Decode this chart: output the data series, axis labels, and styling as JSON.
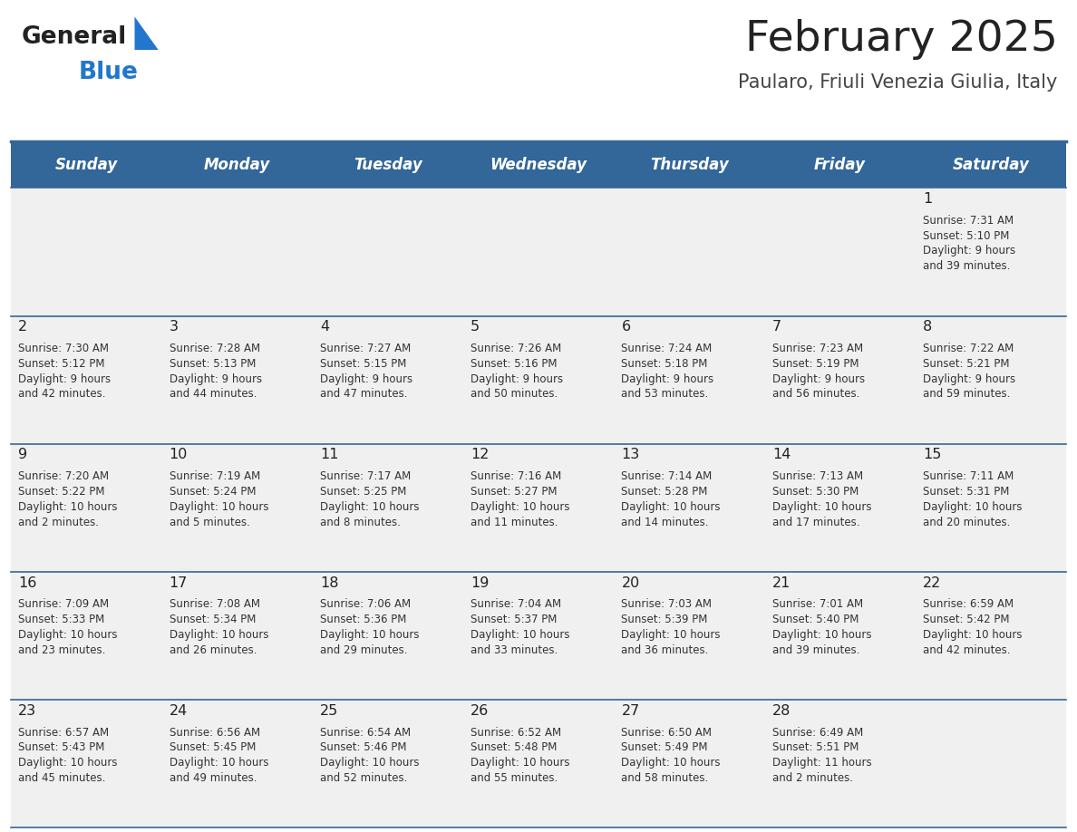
{
  "title": "February 2025",
  "subtitle": "Paularo, Friuli Venezia Giulia, Italy",
  "days_of_week": [
    "Sunday",
    "Monday",
    "Tuesday",
    "Wednesday",
    "Thursday",
    "Friday",
    "Saturday"
  ],
  "header_bg": "#336699",
  "header_text_color": "#ffffff",
  "cell_bg": "#f0f0f0",
  "cell_bg_white": "#ffffff",
  "separator_color": "#336699",
  "day_num_color": "#222222",
  "info_text_color": "#333333",
  "title_color": "#222222",
  "subtitle_color": "#444444",
  "logo_general_color": "#222222",
  "logo_blue_color": "#2277cc",
  "weeks": [
    [
      {
        "day": null,
        "sunrise": null,
        "sunset": null,
        "daylight": null
      },
      {
        "day": null,
        "sunrise": null,
        "sunset": null,
        "daylight": null
      },
      {
        "day": null,
        "sunrise": null,
        "sunset": null,
        "daylight": null
      },
      {
        "day": null,
        "sunrise": null,
        "sunset": null,
        "daylight": null
      },
      {
        "day": null,
        "sunrise": null,
        "sunset": null,
        "daylight": null
      },
      {
        "day": null,
        "sunrise": null,
        "sunset": null,
        "daylight": null
      },
      {
        "day": 1,
        "sunrise": "7:31 AM",
        "sunset": "5:10 PM",
        "daylight": "9 hours\nand 39 minutes."
      }
    ],
    [
      {
        "day": 2,
        "sunrise": "7:30 AM",
        "sunset": "5:12 PM",
        "daylight": "9 hours\nand 42 minutes."
      },
      {
        "day": 3,
        "sunrise": "7:28 AM",
        "sunset": "5:13 PM",
        "daylight": "9 hours\nand 44 minutes."
      },
      {
        "day": 4,
        "sunrise": "7:27 AM",
        "sunset": "5:15 PM",
        "daylight": "9 hours\nand 47 minutes."
      },
      {
        "day": 5,
        "sunrise": "7:26 AM",
        "sunset": "5:16 PM",
        "daylight": "9 hours\nand 50 minutes."
      },
      {
        "day": 6,
        "sunrise": "7:24 AM",
        "sunset": "5:18 PM",
        "daylight": "9 hours\nand 53 minutes."
      },
      {
        "day": 7,
        "sunrise": "7:23 AM",
        "sunset": "5:19 PM",
        "daylight": "9 hours\nand 56 minutes."
      },
      {
        "day": 8,
        "sunrise": "7:22 AM",
        "sunset": "5:21 PM",
        "daylight": "9 hours\nand 59 minutes."
      }
    ],
    [
      {
        "day": 9,
        "sunrise": "7:20 AM",
        "sunset": "5:22 PM",
        "daylight": "10 hours\nand 2 minutes."
      },
      {
        "day": 10,
        "sunrise": "7:19 AM",
        "sunset": "5:24 PM",
        "daylight": "10 hours\nand 5 minutes."
      },
      {
        "day": 11,
        "sunrise": "7:17 AM",
        "sunset": "5:25 PM",
        "daylight": "10 hours\nand 8 minutes."
      },
      {
        "day": 12,
        "sunrise": "7:16 AM",
        "sunset": "5:27 PM",
        "daylight": "10 hours\nand 11 minutes."
      },
      {
        "day": 13,
        "sunrise": "7:14 AM",
        "sunset": "5:28 PM",
        "daylight": "10 hours\nand 14 minutes."
      },
      {
        "day": 14,
        "sunrise": "7:13 AM",
        "sunset": "5:30 PM",
        "daylight": "10 hours\nand 17 minutes."
      },
      {
        "day": 15,
        "sunrise": "7:11 AM",
        "sunset": "5:31 PM",
        "daylight": "10 hours\nand 20 minutes."
      }
    ],
    [
      {
        "day": 16,
        "sunrise": "7:09 AM",
        "sunset": "5:33 PM",
        "daylight": "10 hours\nand 23 minutes."
      },
      {
        "day": 17,
        "sunrise": "7:08 AM",
        "sunset": "5:34 PM",
        "daylight": "10 hours\nand 26 minutes."
      },
      {
        "day": 18,
        "sunrise": "7:06 AM",
        "sunset": "5:36 PM",
        "daylight": "10 hours\nand 29 minutes."
      },
      {
        "day": 19,
        "sunrise": "7:04 AM",
        "sunset": "5:37 PM",
        "daylight": "10 hours\nand 33 minutes."
      },
      {
        "day": 20,
        "sunrise": "7:03 AM",
        "sunset": "5:39 PM",
        "daylight": "10 hours\nand 36 minutes."
      },
      {
        "day": 21,
        "sunrise": "7:01 AM",
        "sunset": "5:40 PM",
        "daylight": "10 hours\nand 39 minutes."
      },
      {
        "day": 22,
        "sunrise": "6:59 AM",
        "sunset": "5:42 PM",
        "daylight": "10 hours\nand 42 minutes."
      }
    ],
    [
      {
        "day": 23,
        "sunrise": "6:57 AM",
        "sunset": "5:43 PM",
        "daylight": "10 hours\nand 45 minutes."
      },
      {
        "day": 24,
        "sunrise": "6:56 AM",
        "sunset": "5:45 PM",
        "daylight": "10 hours\nand 49 minutes."
      },
      {
        "day": 25,
        "sunrise": "6:54 AM",
        "sunset": "5:46 PM",
        "daylight": "10 hours\nand 52 minutes."
      },
      {
        "day": 26,
        "sunrise": "6:52 AM",
        "sunset": "5:48 PM",
        "daylight": "10 hours\nand 55 minutes."
      },
      {
        "day": 27,
        "sunrise": "6:50 AM",
        "sunset": "5:49 PM",
        "daylight": "10 hours\nand 58 minutes."
      },
      {
        "day": 28,
        "sunrise": "6:49 AM",
        "sunset": "5:51 PM",
        "daylight": "11 hours\nand 2 minutes."
      },
      {
        "day": null,
        "sunrise": null,
        "sunset": null,
        "daylight": null
      }
    ]
  ],
  "figsize": [
    11.88,
    9.18
  ],
  "dpi": 100
}
